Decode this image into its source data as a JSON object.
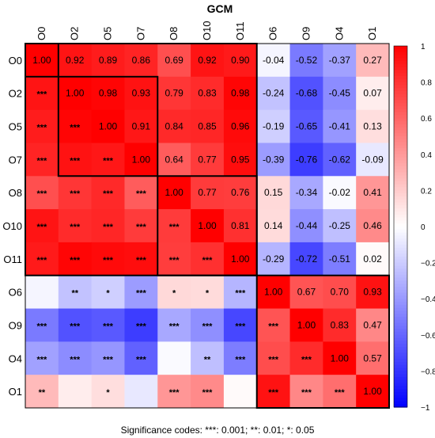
{
  "chart_data": {
    "type": "heatmap",
    "title": "GCM",
    "labels": [
      "O0",
      "O2",
      "O5",
      "O7",
      "O8",
      "O10",
      "O11",
      "O6",
      "O9",
      "O4",
      "O1"
    ],
    "matrix": [
      [
        1.0,
        0.92,
        0.89,
        0.86,
        0.69,
        0.92,
        0.9,
        -0.04,
        -0.52,
        -0.37,
        0.27
      ],
      [
        0.92,
        1.0,
        0.98,
        0.93,
        0.79,
        0.83,
        0.98,
        -0.24,
        -0.68,
        -0.45,
        0.07
      ],
      [
        0.89,
        0.98,
        1.0,
        0.91,
        0.84,
        0.85,
        0.96,
        -0.19,
        -0.65,
        -0.41,
        0.13
      ],
      [
        0.86,
        0.93,
        0.91,
        1.0,
        0.64,
        0.77,
        0.95,
        -0.39,
        -0.76,
        -0.62,
        -0.09
      ],
      [
        0.69,
        0.79,
        0.84,
        0.64,
        1.0,
        0.77,
        0.76,
        0.15,
        -0.34,
        -0.02,
        0.41
      ],
      [
        0.92,
        0.83,
        0.85,
        0.77,
        0.77,
        1.0,
        0.81,
        0.14,
        -0.44,
        -0.25,
        0.46
      ],
      [
        0.9,
        0.98,
        0.96,
        0.95,
        0.76,
        0.81,
        1.0,
        -0.29,
        -0.72,
        -0.51,
        0.02
      ],
      [
        -0.04,
        -0.24,
        -0.19,
        -0.39,
        0.15,
        0.14,
        -0.29,
        1.0,
        0.67,
        0.7,
        0.93
      ],
      [
        -0.52,
        -0.68,
        -0.65,
        -0.76,
        -0.34,
        -0.44,
        -0.72,
        0.67,
        1.0,
        0.83,
        0.47
      ],
      [
        -0.37,
        -0.45,
        -0.41,
        -0.62,
        -0.02,
        -0.25,
        -0.51,
        0.7,
        0.83,
        1.0,
        0.57
      ],
      [
        0.27,
        0.07,
        0.13,
        -0.09,
        0.41,
        0.46,
        0.02,
        0.93,
        0.47,
        0.57,
        1.0
      ]
    ],
    "significance_lower": [
      [
        "",
        "",
        "",
        "",
        "",
        "",
        "",
        "",
        "",
        "",
        ""
      ],
      [
        "***",
        "",
        "",
        "",
        "",
        "",
        "",
        "",
        "",
        "",
        ""
      ],
      [
        "***",
        "***",
        "",
        "",
        "",
        "",
        "",
        "",
        "",
        "",
        ""
      ],
      [
        "***",
        "***",
        "***",
        "",
        "",
        "",
        "",
        "",
        "",
        "",
        ""
      ],
      [
        "***",
        "***",
        "***",
        "***",
        "",
        "",
        "",
        "",
        "",
        "",
        ""
      ],
      [
        "***",
        "***",
        "***",
        "***",
        "***",
        "",
        "",
        "",
        "",
        "",
        ""
      ],
      [
        "***",
        "***",
        "***",
        "***",
        "***",
        "***",
        "",
        "",
        "",
        "",
        ""
      ],
      [
        "",
        "**",
        "*",
        "***",
        "*",
        "*",
        "***",
        "",
        "",
        "",
        ""
      ],
      [
        "***",
        "***",
        "***",
        "***",
        "***",
        "***",
        "***",
        "***",
        "",
        "",
        ""
      ],
      [
        "***",
        "***",
        "***",
        "***",
        "",
        "**",
        "***",
        "***",
        "***",
        "",
        ""
      ],
      [
        "**",
        "",
        "*",
        "",
        "***",
        "***",
        "",
        "***",
        "***",
        "***",
        ""
      ]
    ],
    "clusters": [
      {
        "start": 0,
        "end": 0
      },
      {
        "start": 1,
        "end": 3
      },
      {
        "start": 4,
        "end": 6
      },
      {
        "start": 0,
        "end": 6
      },
      {
        "start": 7,
        "end": 10
      }
    ],
    "colorbar": {
      "min": -1,
      "max": 1,
      "ticks": [
        "1",
        "0.8",
        "0.6",
        "0.4",
        "0.2",
        "0",
        "−0.2",
        "−0.4",
        "−0.6",
        "−0.8",
        "−1"
      ],
      "colors": {
        "negative": "#0000ff",
        "neutral": "#ffffff",
        "positive": "#ff0000"
      }
    },
    "caption": "Significance codes:  ***: 0.001;  **: 0.01;  *: 0.05"
  }
}
